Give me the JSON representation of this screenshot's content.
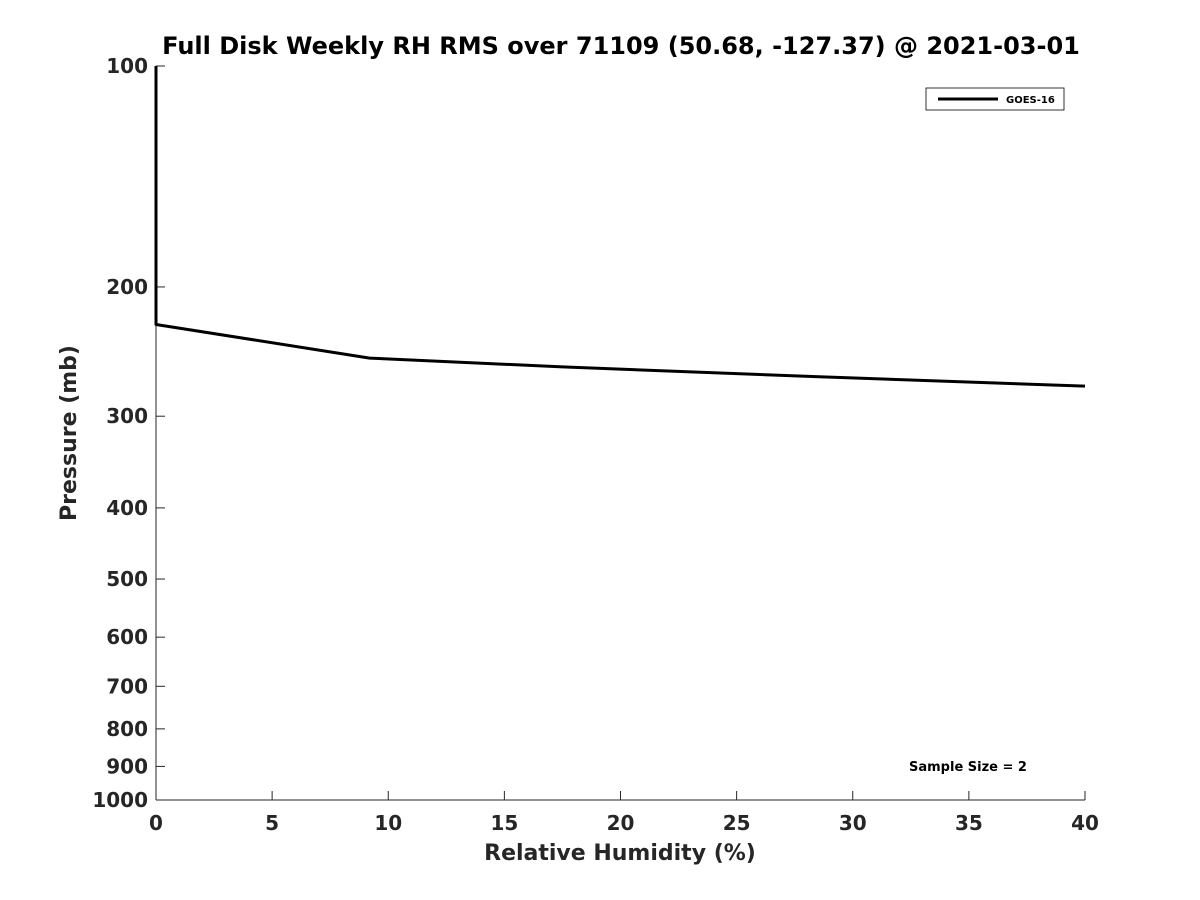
{
  "chart_data": {
    "type": "line",
    "title": "Full Disk Weekly RH RMS over 71109 (50.68, -127.37) @ 2021-03-01",
    "xlabel": "Relative Humidity (%)",
    "ylabel": "Pressure (mb)",
    "xlim": [
      0,
      40
    ],
    "ylim": [
      100,
      1000
    ],
    "y_scale": "log",
    "y_reversed": true,
    "grid": false,
    "legend_position": "top-right",
    "x_ticks": [
      0,
      5,
      10,
      15,
      20,
      25,
      30,
      35,
      40
    ],
    "y_ticks": [
      100,
      200,
      300,
      400,
      500,
      600,
      700,
      800,
      900,
      1000
    ],
    "series": [
      {
        "name": "GOES-16",
        "color": "#000000",
        "points": [
          {
            "x": 0,
            "y": 100
          },
          {
            "x": 0,
            "y": 125
          },
          {
            "x": 0,
            "y": 150
          },
          {
            "x": 0,
            "y": 175
          },
          {
            "x": 0,
            "y": 200
          },
          {
            "x": 0,
            "y": 225
          },
          {
            "x": 9.2,
            "y": 250
          },
          {
            "x": 17.5,
            "y": 257
          },
          {
            "x": 28.4,
            "y": 265
          },
          {
            "x": 40,
            "y": 273
          }
        ]
      }
    ],
    "annotation": "Sample Size = 2"
  }
}
